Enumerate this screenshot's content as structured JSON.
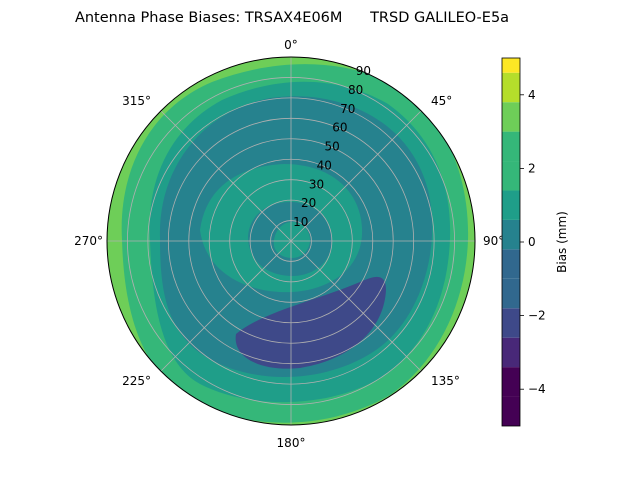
{
  "chart_data": {
    "type": "heatmap",
    "projection": "polar",
    "title": "Antenna Phase Biases: TRSAX4E06M      TRSD GALILEO-E5a",
    "azimuth_ticks": [
      "0°",
      "45°",
      "90°",
      "135°",
      "180°",
      "225°",
      "270°",
      "315°"
    ],
    "azimuth_tick_values": [
      0,
      45,
      90,
      135,
      180,
      225,
      270,
      315
    ],
    "radial_ticks": [
      "10",
      "20",
      "30",
      "40",
      "50",
      "60",
      "70",
      "80",
      "90"
    ],
    "radial_tick_values": [
      10,
      20,
      30,
      40,
      50,
      60,
      70,
      80,
      90
    ],
    "radial_range": [
      0,
      90
    ],
    "grid": true,
    "colorbar": {
      "label": "Bias (mm)",
      "range": [
        -5,
        5
      ],
      "ticks": [
        "−4",
        "−2",
        "0",
        "2",
        "4"
      ],
      "tick_values": [
        -4,
        -2,
        0,
        2,
        4
      ],
      "levels": [
        -5,
        -4.2,
        -3.4,
        -2.6,
        -1.8,
        -1.0,
        -0.2,
        0.6,
        1.4,
        2.2,
        3.0,
        3.8,
        4.6,
        5.0
      ],
      "colors": [
        "#440154",
        "#482878",
        "#3e4989",
        "#31688e",
        "#26828e",
        "#1f9e89",
        "#35b779",
        "#6ece58",
        "#b5de2b",
        "#fde725"
      ]
    },
    "contour_regions": [
      {
        "band": "−0.2 to 0.6",
        "description": "centre and mid ring",
        "value": 0.2
      },
      {
        "band": "−1.0 to −0.2",
        "description": "broad ring 20–80",
        "value": -0.8
      },
      {
        "band": "−2.6 to −1.8",
        "description": "lower right arc",
        "value": -2.2
      },
      {
        "band": "1.4 to 3.0",
        "description": "outer rim",
        "value": 2.0
      }
    ]
  }
}
